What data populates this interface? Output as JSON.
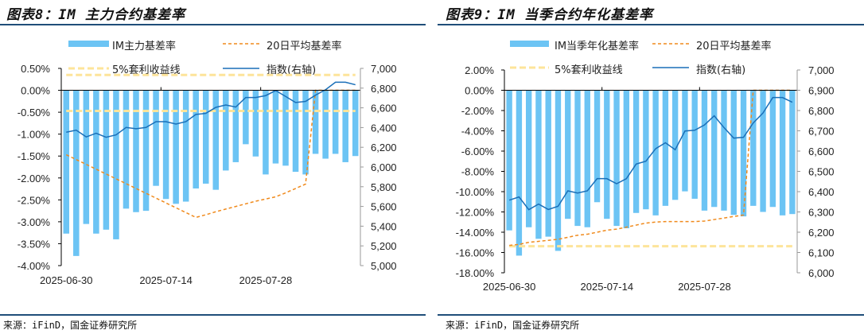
{
  "titles": [
    "图表8：IM 主力合约基差率",
    "图表9：IM 当季合约年化基差率"
  ],
  "source": "来源：iFinD，国金证券研究所",
  "colors": {
    "bar": "#6cc4f4",
    "avg": "#f08a1c",
    "arb": "#fde49a",
    "index": "#1a6fb8",
    "rule": "#1f4e79"
  },
  "chart_data": [
    {
      "type": "bar",
      "title": "图表8：IM 主力合约基差率",
      "x_tick_labels": [
        "2025-06-30",
        "2025-07-14",
        "2025-07-28"
      ],
      "x_tick_index": [
        0,
        10,
        20
      ],
      "y_left": {
        "min": -4.0,
        "max": 0.5,
        "step": 0.5,
        "labels": [
          "0.50%",
          "0.00%",
          "-0.50%",
          "-1.00%",
          "-1.50%",
          "-2.00%",
          "-2.50%",
          "-3.00%",
          "-3.50%",
          "-4.00%"
        ]
      },
      "y_right": {
        "min": 5000,
        "max": 7000,
        "step": 200,
        "labels": [
          "7,000",
          "6,800",
          "6,600",
          "6,400",
          "6,200",
          "6,000",
          "5,800",
          "5,600",
          "5,400",
          "5,200",
          "5,000"
        ]
      },
      "legend": [
        "IM主力基差率",
        "20日平均基差率",
        "5%套利收益线",
        "指数(右轴)"
      ],
      "series": [
        {
          "name": "IM主力基差率",
          "type": "bar",
          "axis": "left",
          "values": [
            -3.27,
            -3.78,
            -3.05,
            -3.27,
            -3.18,
            -3.4,
            -2.7,
            -2.78,
            -2.75,
            -2.18,
            -2.48,
            -2.59,
            -2.54,
            -2.24,
            -2.13,
            -2.27,
            -1.83,
            -1.64,
            -1.23,
            -1.51,
            -1.92,
            -1.67,
            -1.72,
            -1.86,
            -1.92,
            -1.45,
            -1.56,
            -1.45,
            -1.64,
            -1.5
          ]
        },
        {
          "name": "20日平均基差率",
          "type": "line-dashed",
          "axis": "left",
          "values": [
            -1.47,
            -1.58,
            -1.69,
            -1.8,
            -1.91,
            -2.02,
            -2.13,
            -2.24,
            -2.35,
            -2.46,
            -2.57,
            -2.68,
            -2.79,
            -2.9,
            -2.84,
            -2.77,
            -2.71,
            -2.65,
            -2.59,
            -2.53,
            -2.48,
            -2.43,
            -2.34,
            -2.24,
            -2.14,
            0.0,
            0.0,
            0.0,
            0.0,
            0.0
          ]
        },
        {
          "name": "5%套利收益线",
          "type": "hline",
          "axis": "left",
          "values": [
            0.35,
            -0.47
          ]
        },
        {
          "name": "指数(右轴)",
          "type": "line",
          "axis": "right",
          "values": [
            6353,
            6374,
            6305,
            6342,
            6302,
            6326,
            6401,
            6388,
            6401,
            6460,
            6460,
            6436,
            6460,
            6533,
            6544,
            6605,
            6629,
            6608,
            6705,
            6705,
            6724,
            6775,
            6716,
            6654,
            6665,
            6729,
            6783,
            6860,
            6860,
            6834
          ]
        }
      ]
    },
    {
      "type": "bar",
      "title": "图表9：IM 当季合约年化基差率",
      "x_tick_labels": [
        "2025-06-30",
        "2025-07-14",
        "2025-07-28"
      ],
      "x_tick_index": [
        0,
        10,
        20
      ],
      "y_left": {
        "min": -18,
        "max": 2,
        "step": 2,
        "labels": [
          "2.00%",
          "0.00%",
          "-2.00%",
          "-4.00%",
          "-6.00%",
          "-8.00%",
          "-10.00%",
          "-12.00%",
          "-14.00%",
          "-16.00%",
          "-18.00%"
        ]
      },
      "y_right": {
        "min": 6000,
        "max": 7000,
        "step": 100,
        "labels": [
          "7,000",
          "6,900",
          "6,800",
          "6,700",
          "6,600",
          "6,500",
          "6,400",
          "6,300",
          "6,200",
          "6,100",
          "6,000"
        ]
      },
      "legend": [
        "IM当季年化基差率",
        "20日平均基差率",
        "5%套利收益线",
        "指数(右轴)"
      ],
      "series": [
        {
          "name": "IM当季年化基差率",
          "type": "bar",
          "axis": "left",
          "values": [
            -13.82,
            -16.31,
            -13.51,
            -14.65,
            -14.44,
            -15.84,
            -12.68,
            -13.38,
            -13.51,
            -11.04,
            -12.68,
            -13.38,
            -13.61,
            -12.1,
            -11.74,
            -12.34,
            -11.4,
            -10.81,
            -9.97,
            -10.7,
            -11.87,
            -11.51,
            -11.87,
            -12.29,
            -12.44,
            -11.4,
            -12.0,
            -11.51,
            -12.34,
            -12.21
          ]
        },
        {
          "name": "20日平均基差率",
          "type": "line-dashed",
          "axis": "left",
          "values": [
            -15.3,
            -15.2,
            -15.0,
            -14.9,
            -14.8,
            -14.7,
            -14.5,
            -14.3,
            -14.2,
            -14.0,
            -13.8,
            -13.7,
            -13.5,
            -13.3,
            -13.1,
            -13.0,
            -12.95,
            -12.95,
            -12.95,
            -12.95,
            -12.9,
            -12.75,
            -12.6,
            -12.45,
            -12.3,
            0.0,
            0.0,
            0.0,
            0.0,
            0.0
          ]
        },
        {
          "name": "5%套利收益线",
          "type": "hline",
          "axis": "left",
          "values": [
            -15.38
          ]
        },
        {
          "name": "指数(右轴)",
          "type": "line",
          "axis": "right",
          "values": [
            6358,
            6374,
            6311,
            6339,
            6312,
            6328,
            6404,
            6393,
            6404,
            6464,
            6464,
            6439,
            6464,
            6536,
            6550,
            6612,
            6641,
            6607,
            6699,
            6703,
            6729,
            6774,
            6716,
            6664,
            6668,
            6739,
            6788,
            6864,
            6864,
            6841
          ]
        }
      ]
    }
  ]
}
